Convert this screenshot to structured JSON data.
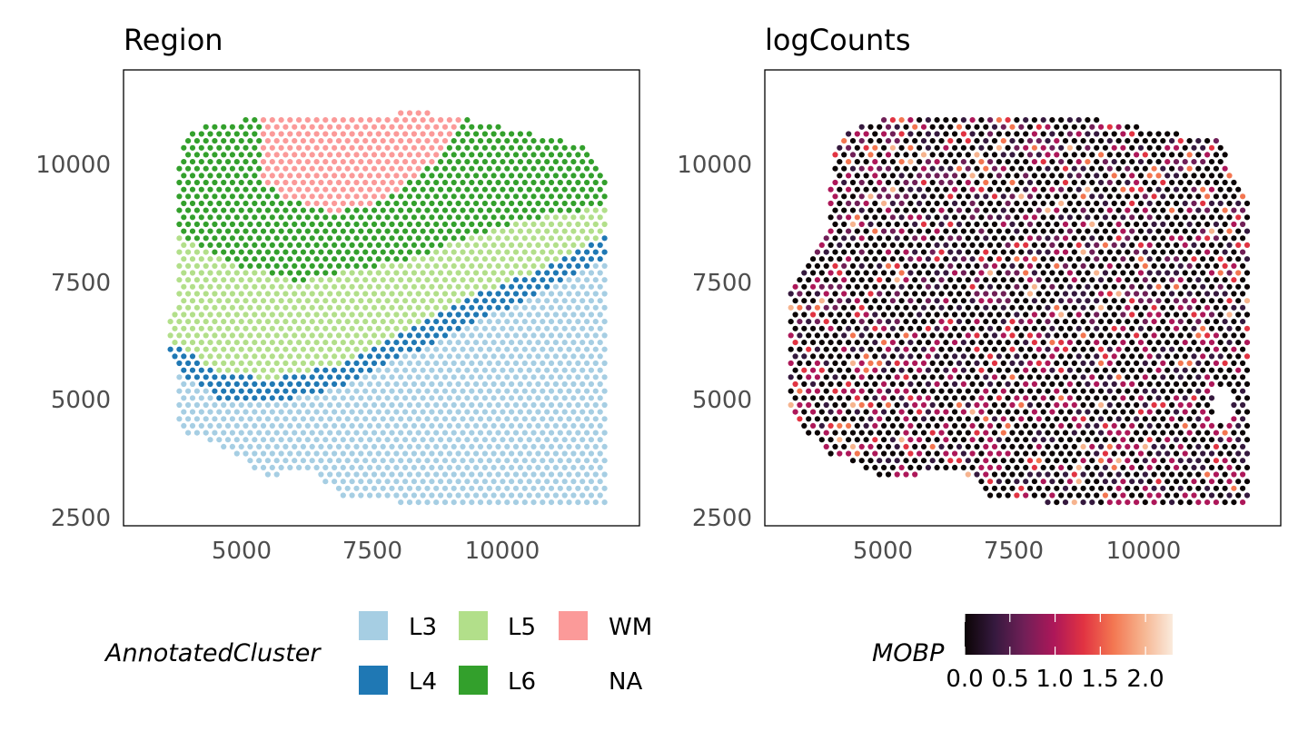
{
  "chart_data": [
    {
      "type": "scatter",
      "title": "Region",
      "xlim": [
        2700,
        12600
      ],
      "ylim": [
        2300,
        12000
      ],
      "x_ticks": [
        "5000",
        "7500",
        "10000"
      ],
      "y_ticks": [
        "10000",
        "7500",
        "5000",
        "2500"
      ],
      "grid": false,
      "legend": {
        "title": "AnnotatedCluster",
        "position": "bottom",
        "entries": [
          {
            "label": "L3",
            "color": "#a6cee3"
          },
          {
            "label": "L4",
            "color": "#1f78b4"
          },
          {
            "label": "L5",
            "color": "#b2df8a"
          },
          {
            "label": "L6",
            "color": "#33a02c"
          },
          {
            "label": "WM",
            "color": "#fb9a99"
          },
          {
            "label": "NA",
            "color": "#ffffff"
          }
        ]
      },
      "point_grid": {
        "spacing": 100,
        "x_range": [
          3600,
          12000
        ],
        "y_range": [
          2800,
          11100
        ]
      }
    },
    {
      "type": "scatter",
      "title": "logCounts",
      "xlim": [
        2700,
        12600
      ],
      "ylim": [
        2300,
        12000
      ],
      "x_ticks": [
        "5000",
        "7500",
        "10000"
      ],
      "y_ticks": [
        "10000",
        "7500",
        "5000",
        "2500"
      ],
      "grid": false,
      "colorbar": {
        "title": "MOBP",
        "position": "bottom",
        "range": [
          0,
          2.3
        ],
        "tick_labels": [
          "0.0",
          "0.5",
          "1.0",
          "1.5",
          "2.0"
        ],
        "colors": [
          "#0b0405",
          "#35193e",
          "#701f57",
          "#ad1759",
          "#e13342",
          "#f37651",
          "#f6b48f",
          "#faebdd"
        ]
      },
      "point_grid": {
        "spacing": 100,
        "x_range": [
          3200,
          12000
        ],
        "y_range": [
          2800,
          11500
        ]
      }
    }
  ]
}
